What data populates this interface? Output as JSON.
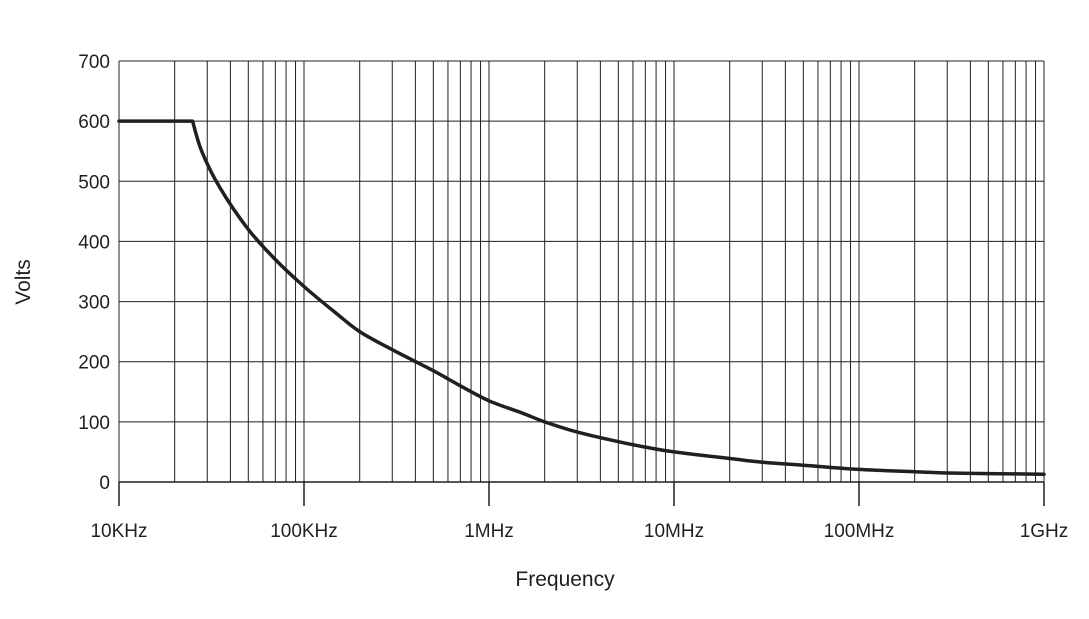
{
  "chart_data": {
    "type": "line",
    "title": "",
    "xlabel": "Frequency",
    "ylabel": "Volts",
    "x_scale": "log",
    "xlim": [
      10000,
      1000000000
    ],
    "ylim": [
      0,
      700
    ],
    "grid": true,
    "x_ticks": [
      {
        "value": 10000,
        "label": "10KHz"
      },
      {
        "value": 100000,
        "label": "100KHz"
      },
      {
        "value": 1000000,
        "label": "1MHz"
      },
      {
        "value": 10000000,
        "label": "10MHz"
      },
      {
        "value": 100000000,
        "label": "100MHz"
      },
      {
        "value": 1000000000,
        "label": "1GHz"
      }
    ],
    "y_ticks": [
      {
        "value": 0,
        "label": "0"
      },
      {
        "value": 100,
        "label": "100"
      },
      {
        "value": 200,
        "label": "200"
      },
      {
        "value": 300,
        "label": "300"
      },
      {
        "value": 400,
        "label": "400"
      },
      {
        "value": 500,
        "label": "500"
      },
      {
        "value": 600,
        "label": "600"
      },
      {
        "value": 700,
        "label": "700"
      }
    ],
    "series": [
      {
        "x": [
          10000,
          25000,
          28000,
          35000,
          50000,
          70000,
          100000,
          150000,
          200000,
          300000,
          500000,
          700000,
          1000000,
          1500000,
          2000000,
          3000000,
          5000000,
          7000000,
          10000000,
          20000000,
          30000000,
          50000000,
          100000000,
          200000000,
          300000000,
          500000000,
          1000000000
        ],
        "y": [
          600,
          600,
          550,
          490,
          420,
          370,
          325,
          280,
          250,
          220,
          185,
          160,
          135,
          115,
          100,
          83,
          67,
          58,
          50,
          39,
          33,
          28,
          21,
          17,
          15,
          14,
          13
        ]
      }
    ]
  }
}
